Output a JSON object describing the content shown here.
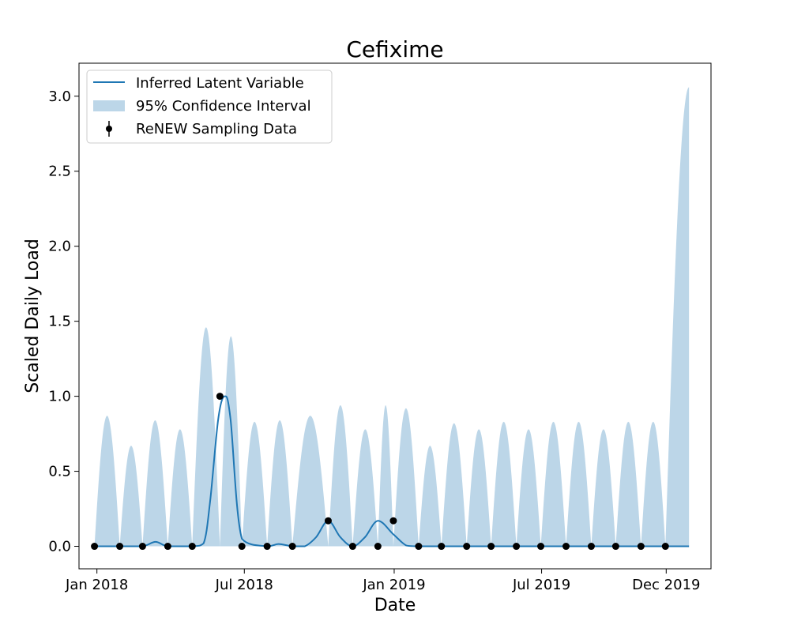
{
  "chart_data": {
    "type": "line",
    "title": "Cefixime",
    "xlabel": "Date",
    "ylabel": "Scaled Daily Load",
    "xlim": [
      "2017-12-10",
      "2020-01-25"
    ],
    "ylim": [
      -0.15,
      3.22
    ],
    "x_ticks": [
      {
        "date": "2018-01-01",
        "label": "Jan 2018"
      },
      {
        "date": "2018-07-01",
        "label": "Jul 2018"
      },
      {
        "date": "2019-01-01",
        "label": "Jan 2019"
      },
      {
        "date": "2019-07-01",
        "label": "Jul 2019"
      },
      {
        "date": "2019-12-01",
        "label": "Dec 2019"
      }
    ],
    "y_ticks": [
      {
        "value": 0.0,
        "label": "0.0"
      },
      {
        "value": 0.5,
        "label": "0.5"
      },
      {
        "value": 1.0,
        "label": "1.0"
      },
      {
        "value": 1.5,
        "label": "1.5"
      },
      {
        "value": 2.0,
        "label": "2.0"
      },
      {
        "value": 2.5,
        "label": "2.5"
      },
      {
        "value": 3.0,
        "label": "3.0"
      }
    ],
    "grid": false,
    "legend": {
      "position": "top-left",
      "entries": [
        {
          "label": "Inferred Latent Variable",
          "kind": "line"
        },
        {
          "label": "95% Confidence Interval",
          "kind": "band"
        },
        {
          "label": "ReNEW Sampling Data",
          "kind": "errorbar-point"
        }
      ]
    },
    "colors": {
      "latent": "#1f77b4",
      "ci": "#bcd6e8",
      "points": "#000000"
    },
    "series": [
      {
        "name": "ReNEW Sampling Data",
        "kind": "scatter",
        "x": [
          "2017-12-29",
          "2018-01-29",
          "2018-02-26",
          "2018-03-29",
          "2018-04-28",
          "2018-06-00",
          "2018-06-28",
          "2018-07-29",
          "2018-08-29",
          "2018-10-12",
          "2018-11-11",
          "2018-12-12",
          "2018-12-31",
          "2019-01-31",
          "2019-02-28",
          "2019-03-31",
          "2019-04-30",
          "2019-05-31",
          "2019-06-30",
          "2019-07-31",
          "2019-08-31",
          "2019-09-30",
          "2019-10-31",
          "2019-11-30"
        ],
        "y": [
          0,
          0,
          0,
          0,
          0,
          1.0,
          0,
          0,
          0,
          0.17,
          0,
          0,
          0.17,
          0,
          0,
          0,
          0,
          0,
          0,
          0,
          0,
          0,
          0,
          0
        ]
      },
      {
        "name": "Inferred Latent Variable",
        "kind": "line",
        "x": [
          "2017-12-29",
          "2018-01-29",
          "2018-02-26",
          "2018-03-14",
          "2018-03-29",
          "2018-04-28",
          "2018-05-12",
          "2018-05-20",
          "2018-05-30",
          "2018-06-07",
          "2018-06-14",
          "2018-06-28",
          "2018-07-29",
          "2018-08-12",
          "2018-08-29",
          "2018-09-13",
          "2018-09-27",
          "2018-10-12",
          "2018-10-27",
          "2018-11-11",
          "2018-11-26",
          "2018-12-12",
          "2018-12-31",
          "2019-01-16",
          "2019-01-31",
          "2019-02-28",
          "2019-03-31",
          "2019-04-30",
          "2019-05-31",
          "2019-06-30",
          "2019-07-31",
          "2019-08-31",
          "2019-09-30",
          "2019-10-31",
          "2019-11-30",
          "2019-12-29"
        ],
        "y": [
          0,
          0,
          0,
          0.03,
          0,
          0,
          0.02,
          0.3,
          0.85,
          1.0,
          0.85,
          0.05,
          0,
          0.015,
          0,
          0,
          0.06,
          0.17,
          0.06,
          0,
          0.06,
          0.17,
          0.08,
          0.005,
          0,
          0,
          0,
          0,
          0,
          0,
          0,
          0,
          0,
          0,
          0,
          0
        ]
      },
      {
        "name": "95% Confidence Interval",
        "kind": "band",
        "peaks": [
          {
            "x": "2018-01-13",
            "y": 0.87
          },
          {
            "x": "2018-02-13",
            "y": 0.67
          },
          {
            "x": "2018-03-14",
            "y": 0.84
          },
          {
            "x": "2018-04-13",
            "y": 0.78
          },
          {
            "x": "2018-05-19",
            "y": 1.46
          },
          {
            "x": "2018-06-09",
            "y": 1.4
          },
          {
            "x": "2018-07-14",
            "y": 0.83
          },
          {
            "x": "2018-08-13",
            "y": 0.84
          },
          {
            "x": "2018-09-13",
            "y": 0.87
          },
          {
            "x": "2018-10-12",
            "y": 0.94
          },
          {
            "x": "2018-11-11",
            "y": 0.78
          },
          {
            "x": "2018-12-12",
            "y": 0.94
          },
          {
            "x": "2019-01-10",
            "y": 0.92
          },
          {
            "x": "2019-02-13",
            "y": 0.67
          },
          {
            "x": "2019-03-15",
            "y": 0.82
          },
          {
            "x": "2019-04-15",
            "y": 0.78
          },
          {
            "x": "2019-05-15",
            "y": 0.83
          },
          {
            "x": "2019-06-15",
            "y": 0.78
          },
          {
            "x": "2019-07-15",
            "y": 0.83
          },
          {
            "x": "2019-08-15",
            "y": 0.83
          },
          {
            "x": "2019-09-15",
            "y": 0.78
          },
          {
            "x": "2019-10-15",
            "y": 0.83
          },
          {
            "x": "2019-11-15",
            "y": 0.83
          }
        ],
        "tail": {
          "x_start": "2019-11-30",
          "x_end": "2019-12-29",
          "y_end": 3.06
        }
      }
    ]
  }
}
